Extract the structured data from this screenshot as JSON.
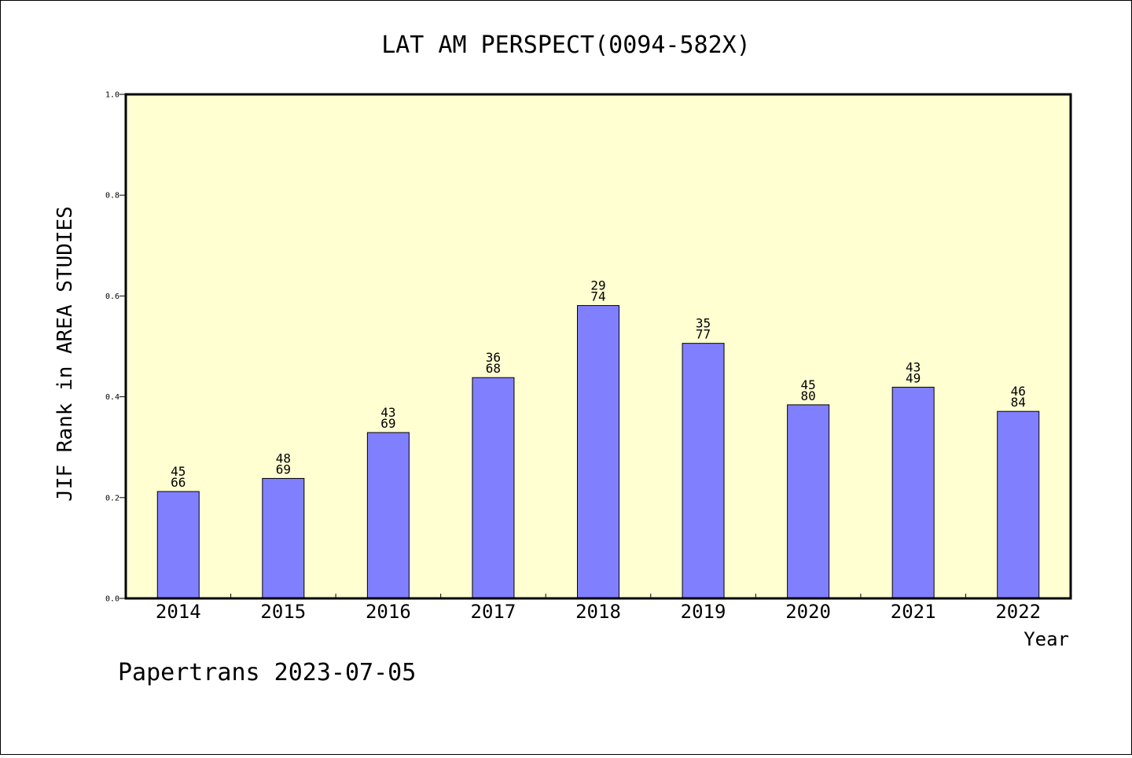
{
  "chart_data": {
    "type": "bar",
    "title": "LAT AM PERSPECT(0094-582X)",
    "xlabel": "Year",
    "ylabel": "JIF Rank in AREA STUDIES",
    "ylim": [
      0,
      1.0
    ],
    "yticks": [
      "0.0",
      "0.2",
      "0.4",
      "0.6",
      "0.8",
      "1.0"
    ],
    "grid": false,
    "categories": [
      "2014",
      "2015",
      "2016",
      "2017",
      "2018",
      "2019",
      "2020",
      "2021",
      "2022"
    ],
    "values": [
      0.212,
      0.238,
      0.329,
      0.438,
      0.581,
      0.506,
      0.384,
      0.419,
      0.371
    ],
    "rank": [
      "45",
      "48",
      "43",
      "36",
      "29",
      "35",
      "45",
      "43",
      "46"
    ],
    "total": [
      "66",
      "69",
      "69",
      "68",
      "74",
      "77",
      "80",
      "49",
      "84"
    ],
    "colors": {
      "plot_background": "#FFFFD2",
      "bar_fill": "#8080FF",
      "bar_stroke": "#000000"
    }
  },
  "footer": "Papertrans 2023-07-05"
}
